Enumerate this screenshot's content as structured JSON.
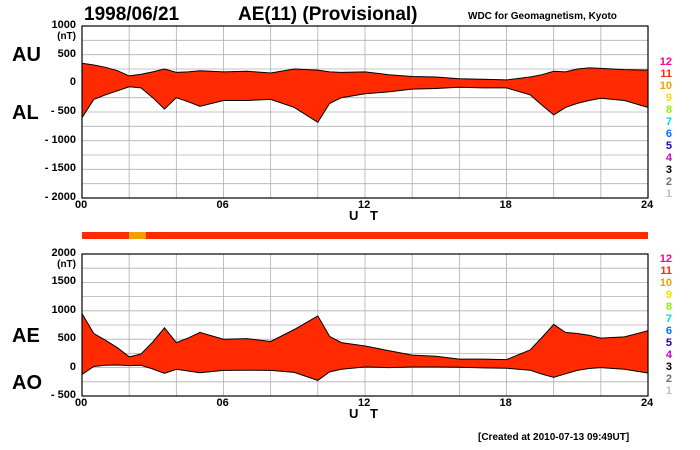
{
  "header": {
    "date": "1998/06/21",
    "title": "AE(11) (Provisional)",
    "credit": "WDC for Geomagnetism, Kyoto"
  },
  "footer": {
    "created": "[Created at 2010-07-13 09:49UT]"
  },
  "colors": {
    "fill": "#ff2a00",
    "highlight": "#f0a000",
    "line": "#000000",
    "grid": "#b0b0b0"
  },
  "legend": {
    "items": [
      {
        "label": "12",
        "color": "#ff0090"
      },
      {
        "label": "11",
        "color": "#ff2a00"
      },
      {
        "label": "10",
        "color": "#f0a000"
      },
      {
        "label": "9",
        "color": "#f0e000"
      },
      {
        "label": "8",
        "color": "#90f000"
      },
      {
        "label": "7",
        "color": "#00d8d8"
      },
      {
        "label": "6",
        "color": "#0070ff"
      },
      {
        "label": "5",
        "color": "#2000b0"
      },
      {
        "label": "4",
        "color": "#d000d0"
      },
      {
        "label": "3",
        "color": "#000000"
      },
      {
        "label": "2",
        "color": "#707070"
      },
      {
        "label": "1",
        "color": "#c0c0c0"
      }
    ]
  },
  "chart_data": [
    {
      "type": "area",
      "upper_label": "AU",
      "lower_label": "AL",
      "unit": "(nT)",
      "xlabel": "U T",
      "xlim": [
        0,
        24
      ],
      "ylim": [
        -2000,
        1000
      ],
      "x_ticks": [
        "00",
        "06",
        "12",
        "18",
        "24"
      ],
      "y_ticks": [
        "1000",
        "500",
        "0",
        "- 500",
        "- 1000",
        "- 1500",
        "- 2000"
      ],
      "y_tick_values": [
        1000,
        500,
        0,
        -500,
        -1000,
        -1500,
        -2000
      ],
      "station_count_band": [
        {
          "from": 0,
          "to": 2.0,
          "stations": 11
        },
        {
          "from": 2.0,
          "to": 2.7,
          "stations": 10
        },
        {
          "from": 2.7,
          "to": 24,
          "stations": 11
        }
      ],
      "series": [
        {
          "name": "AU",
          "x": [
            0,
            0.5,
            1,
            1.5,
            2,
            2.5,
            3,
            3.5,
            4,
            4.5,
            5,
            6,
            7,
            8,
            9,
            10,
            10.5,
            11,
            12,
            13,
            14,
            15,
            16,
            17,
            18,
            19,
            19.5,
            20,
            20.5,
            21,
            21.5,
            22,
            23,
            24
          ],
          "values": [
            350,
            320,
            280,
            220,
            130,
            160,
            200,
            250,
            190,
            200,
            220,
            200,
            210,
            180,
            250,
            230,
            200,
            190,
            200,
            150,
            120,
            110,
            80,
            70,
            60,
            110,
            150,
            210,
            200,
            250,
            270,
            260,
            240,
            230
          ]
        },
        {
          "name": "AL",
          "x": [
            0,
            0.5,
            1,
            1.5,
            2,
            2.5,
            3,
            3.5,
            4,
            4.5,
            5,
            6,
            7,
            8,
            9,
            10,
            10.5,
            11,
            12,
            13,
            14,
            15,
            16,
            17,
            18,
            19,
            19.5,
            20,
            20.5,
            21,
            21.5,
            22,
            23,
            24
          ],
          "values": [
            -600,
            -280,
            -200,
            -130,
            -60,
            -80,
            -250,
            -450,
            -250,
            -320,
            -400,
            -300,
            -300,
            -280,
            -420,
            -680,
            -350,
            -250,
            -180,
            -150,
            -100,
            -90,
            -70,
            -80,
            -80,
            -200,
            -380,
            -550,
            -420,
            -350,
            -300,
            -260,
            -300,
            -420
          ]
        }
      ]
    },
    {
      "type": "area",
      "upper_label": "AE",
      "lower_label": "AO",
      "unit": "(nT)",
      "xlabel": "U T",
      "xlim": [
        0,
        24
      ],
      "ylim": [
        -500,
        2000
      ],
      "x_ticks": [
        "00",
        "06",
        "12",
        "18",
        "24"
      ],
      "y_ticks": [
        "2000",
        "1500",
        "1000",
        "500",
        "0",
        "- 500"
      ],
      "y_tick_values": [
        2000,
        1500,
        1000,
        500,
        0,
        -500
      ],
      "station_count_band": [
        {
          "from": 0,
          "to": 2.0,
          "stations": 11
        },
        {
          "from": 2.0,
          "to": 2.7,
          "stations": 10
        },
        {
          "from": 2.7,
          "to": 24,
          "stations": 11
        }
      ],
      "series": [
        {
          "name": "AE",
          "x": [
            0,
            0.5,
            1,
            1.5,
            2,
            2.5,
            3,
            3.5,
            4,
            4.5,
            5,
            6,
            7,
            8,
            9,
            10,
            10.5,
            11,
            12,
            13,
            14,
            15,
            16,
            17,
            18,
            19,
            19.5,
            20,
            20.5,
            21,
            21.5,
            22,
            23,
            24
          ],
          "values": [
            950,
            600,
            480,
            350,
            190,
            240,
            450,
            700,
            440,
            520,
            620,
            500,
            510,
            460,
            670,
            910,
            550,
            440,
            380,
            300,
            220,
            200,
            150,
            150,
            140,
            310,
            530,
            760,
            620,
            600,
            570,
            520,
            540,
            650
          ]
        },
        {
          "name": "AO",
          "x": [
            0,
            0.5,
            1,
            1.5,
            2,
            2.5,
            3,
            3.5,
            4,
            4.5,
            5,
            6,
            7,
            8,
            9,
            10,
            10.5,
            11,
            12,
            13,
            14,
            15,
            16,
            17,
            18,
            19,
            19.5,
            20,
            20.5,
            21,
            21.5,
            22,
            23,
            24
          ],
          "values": [
            -120,
            20,
            40,
            45,
            35,
            40,
            -25,
            -100,
            -30,
            -60,
            -90,
            -50,
            -45,
            -50,
            -85,
            -225,
            -75,
            -30,
            10,
            0,
            10,
            10,
            5,
            -5,
            -10,
            -45,
            -115,
            -170,
            -110,
            -50,
            -15,
            0,
            -30,
            -95
          ]
        }
      ]
    }
  ]
}
